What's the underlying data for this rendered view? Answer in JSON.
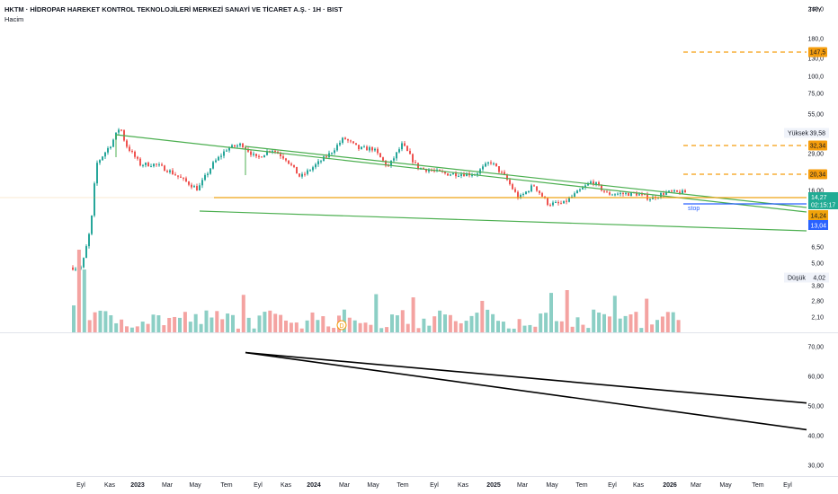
{
  "header": {
    "title": "HKTM · HİDROPAR HAREKET KONTROL TEKNOLOJİLERİ MERKEZİ SANAYİ VE TİCARET A.Ş. · 1H · BIST",
    "volume_label": "Hacim",
    "currency": "TRY"
  },
  "price_axis": {
    "ticks": [
      "240,0",
      "180,0",
      "130,0",
      "100,0",
      "75,00",
      "55,00",
      "29,00",
      "16,00",
      "6,50",
      "5,00",
      "3,80",
      "2,80",
      "2,10"
    ],
    "high_label": "Yüksek",
    "high_value": "39,58",
    "low_label": "Düşük",
    "low_value": "4,02",
    "level_tags": [
      "147,5",
      "32,34",
      "20,34"
    ],
    "last_price": "14,27",
    "countdown": "02:15:17",
    "prev_price": "14,24",
    "stop_price": "13,04"
  },
  "stop_label": "stop",
  "dividend_marker": "D",
  "oscillator_axis": {
    "ticks": [
      "70,00",
      "60,00",
      "50,00",
      "40,00",
      "30,00"
    ]
  },
  "time_axis": {
    "labels": [
      {
        "t": "Eyl",
        "b": false
      },
      {
        "t": "Kas",
        "b": false
      },
      {
        "t": "2023",
        "b": true
      },
      {
        "t": "Mar",
        "b": false
      },
      {
        "t": "May",
        "b": false
      },
      {
        "t": "Tem",
        "b": false
      },
      {
        "t": "Eyl",
        "b": false
      },
      {
        "t": "Kas",
        "b": false
      },
      {
        "t": "2024",
        "b": true
      },
      {
        "t": "Mar",
        "b": false
      },
      {
        "t": "May",
        "b": false
      },
      {
        "t": "Tem",
        "b": false
      },
      {
        "t": "Eyl",
        "b": false
      },
      {
        "t": "Kas",
        "b": false
      },
      {
        "t": "2025",
        "b": true
      },
      {
        "t": "Mar",
        "b": false
      },
      {
        "t": "May",
        "b": false
      },
      {
        "t": "Tem",
        "b": false
      },
      {
        "t": "Eyl",
        "b": false
      },
      {
        "t": "Kas",
        "b": false
      },
      {
        "t": "2026",
        "b": true
      },
      {
        "t": "Mar",
        "b": false
      },
      {
        "t": "May",
        "b": false
      },
      {
        "t": "Tem",
        "b": false
      },
      {
        "t": "Eyl",
        "b": false
      }
    ]
  },
  "colors": {
    "up": "#26a69a",
    "down": "#ef5350",
    "up_vol": "#8ccfc5",
    "down_vol": "#f4a3a1",
    "channel": "#4caf50",
    "support": "#f0a30a",
    "stop": "#2962ff",
    "tag_orange": "#f59d0d",
    "tag_green": "#22ab94",
    "tag_red": "#f0a30a",
    "tag_blue": "#2962ff"
  },
  "chart_data": {
    "type": "candlestick",
    "timeframe": "1H",
    "price_scale": "log",
    "price_range": [
      2.1,
      240
    ],
    "anchors": [
      {
        "date": "2022-09",
        "price": 4.5
      },
      {
        "date": "2022-09-20",
        "price": 8.5
      },
      {
        "date": "2022-10",
        "price": 22
      },
      {
        "date": "2022-11",
        "price": 30
      },
      {
        "date": "2022-11-20",
        "price": 39.58
      },
      {
        "date": "2022-12",
        "price": 30
      },
      {
        "date": "2023-01",
        "price": 22
      },
      {
        "date": "2023-02",
        "price": 22
      },
      {
        "date": "2023-03",
        "price": 20
      },
      {
        "date": "2023-05",
        "price": 15
      },
      {
        "date": "2023-06",
        "price": 22
      },
      {
        "date": "2023-07",
        "price": 28
      },
      {
        "date": "2023-08",
        "price": 30
      },
      {
        "date": "2023-09",
        "price": 24
      },
      {
        "date": "2023-10",
        "price": 28
      },
      {
        "date": "2023-11",
        "price": 24
      },
      {
        "date": "2023-12",
        "price": 18
      },
      {
        "date": "2024-02",
        "price": 26
      },
      {
        "date": "2024-03",
        "price": 33
      },
      {
        "date": "2024-04",
        "price": 28
      },
      {
        "date": "2024-05",
        "price": 28
      },
      {
        "date": "2024-06",
        "price": 21
      },
      {
        "date": "2024-07",
        "price": 30
      },
      {
        "date": "2024-08",
        "price": 21
      },
      {
        "date": "2024-10",
        "price": 19
      },
      {
        "date": "2024-12",
        "price": 19
      },
      {
        "date": "2025-01",
        "price": 23
      },
      {
        "date": "2025-02",
        "price": 18
      },
      {
        "date": "2025-03",
        "price": 13
      },
      {
        "date": "2025-04",
        "price": 16
      },
      {
        "date": "2025-05",
        "price": 12
      },
      {
        "date": "2025-06",
        "price": 12
      },
      {
        "date": "2025-08",
        "price": 17
      },
      {
        "date": "2025-09",
        "price": 14
      },
      {
        "date": "2025-11",
        "price": 14
      },
      {
        "date": "2025-12",
        "price": 13
      },
      {
        "date": "2026-01",
        "price": 14.27
      }
    ],
    "volume_bars": 115,
    "horizontal_levels": [
      147.5,
      32.34,
      20.34,
      14.24,
      13.04
    ],
    "oscillator_range": [
      30,
      70
    ],
    "oscillator_lines": [
      {
        "from": {
          "date": "2023-07",
          "value": 68
        },
        "to": {
          "date": "2026-10",
          "value": 51
        }
      },
      {
        "from": {
          "date": "2023-07",
          "value": 68
        },
        "to": {
          "date": "2026-10",
          "value": 42
        }
      }
    ]
  }
}
